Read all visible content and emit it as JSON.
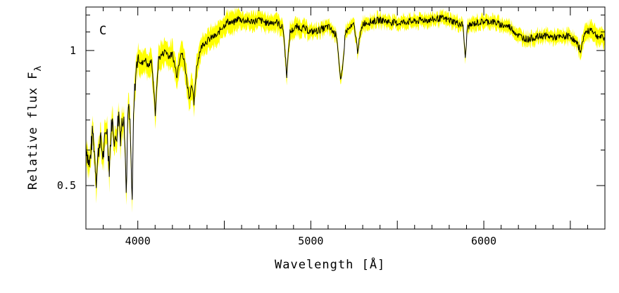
{
  "chart_data": {
    "type": "line",
    "panel_label": "C",
    "xlabel": "Wavelength  [Å]",
    "ylabel": "Relative flux F",
    "ylabel_subscript": "λ",
    "xlim": [
      3700,
      6700
    ],
    "ylim": [
      0.4,
      1.25
    ],
    "y_scale": "log",
    "x_ticks": [
      4000,
      5000,
      6000
    ],
    "y_ticks": [
      0.5,
      1
    ],
    "grid": false,
    "colors": {
      "mean": "#000000",
      "envelope": "#ffff00"
    },
    "series": [
      {
        "x": [
          3700,
          3720,
          3740,
          3760,
          3780,
          3800,
          3820,
          3835,
          3850,
          3870,
          3890,
          3900,
          3920,
          3933,
          3945,
          3955,
          3968,
          3975,
          3985,
          4000,
          4020,
          4040,
          4060,
          4080,
          4101,
          4120,
          4140,
          4160,
          4180,
          4200,
          4226,
          4250,
          4270,
          4290,
          4300,
          4310,
          4325,
          4340,
          4360,
          4380,
          4400,
          4430,
          4460,
          4480,
          4500,
          4520,
          4550,
          4580,
          4600,
          4650,
          4700,
          4750,
          4800,
          4840,
          4861,
          4880,
          4920,
          4960,
          5000,
          5050,
          5100,
          5150,
          5172,
          5183,
          5200,
          5250,
          5270,
          5300,
          5350,
          5400,
          5450,
          5500,
          5550,
          5600,
          5650,
          5700,
          5750,
          5800,
          5850,
          5880,
          5893,
          5905,
          5950,
          6000,
          6050,
          6100,
          6150,
          6200,
          6250,
          6300,
          6350,
          6400,
          6450,
          6500,
          6540,
          6563,
          6580,
          6600,
          6620,
          6650,
          6680,
          6700
        ],
        "y": [
          0.62,
          0.55,
          0.66,
          0.52,
          0.64,
          0.58,
          0.68,
          0.55,
          0.7,
          0.62,
          0.72,
          0.65,
          0.74,
          0.48,
          0.75,
          0.68,
          0.44,
          0.7,
          0.86,
          0.97,
          0.93,
          0.96,
          0.92,
          0.95,
          0.72,
          0.96,
          0.98,
          1.0,
          0.97,
          0.98,
          0.88,
          1.0,
          0.94,
          0.82,
          0.78,
          0.85,
          0.76,
          0.92,
          1.0,
          1.04,
          1.05,
          1.07,
          1.08,
          1.12,
          1.14,
          1.16,
          1.15,
          1.18,
          1.17,
          1.16,
          1.17,
          1.15,
          1.16,
          1.12,
          0.88,
          1.1,
          1.13,
          1.12,
          1.1,
          1.11,
          1.13,
          1.08,
          0.85,
          0.9,
          1.1,
          1.14,
          1.0,
          1.15,
          1.16,
          1.17,
          1.16,
          1.15,
          1.16,
          1.16,
          1.17,
          1.17,
          1.18,
          1.17,
          1.15,
          1.14,
          0.95,
          1.13,
          1.15,
          1.16,
          1.16,
          1.14,
          1.13,
          1.08,
          1.06,
          1.07,
          1.08,
          1.07,
          1.07,
          1.08,
          1.03,
          1.0,
          1.09,
          1.1,
          1.12,
          1.08,
          1.07,
          1.06
        ],
        "envelope": [
          0.06,
          0.06,
          0.06,
          0.06,
          0.06,
          0.06,
          0.06,
          0.06,
          0.06,
          0.06,
          0.06,
          0.06,
          0.06,
          0.06,
          0.06,
          0.06,
          0.06,
          0.06,
          0.06,
          0.06,
          0.06,
          0.06,
          0.06,
          0.06,
          0.06,
          0.06,
          0.06,
          0.06,
          0.06,
          0.06,
          0.06,
          0.06,
          0.06,
          0.06,
          0.06,
          0.06,
          0.06,
          0.06,
          0.05,
          0.05,
          0.05,
          0.05,
          0.05,
          0.05,
          0.05,
          0.05,
          0.05,
          0.05,
          0.04,
          0.04,
          0.04,
          0.04,
          0.04,
          0.04,
          0.04,
          0.04,
          0.04,
          0.04,
          0.03,
          0.03,
          0.03,
          0.03,
          0.03,
          0.03,
          0.03,
          0.03,
          0.03,
          0.03,
          0.03,
          0.03,
          0.03,
          0.03,
          0.03,
          0.03,
          0.03,
          0.03,
          0.03,
          0.03,
          0.03,
          0.03,
          0.03,
          0.03,
          0.03,
          0.03,
          0.03,
          0.03,
          0.03,
          0.03,
          0.03,
          0.03,
          0.03,
          0.03,
          0.03,
          0.03,
          0.03,
          0.04,
          0.04,
          0.04,
          0.04,
          0.04,
          0.04,
          0.04
        ]
      }
    ]
  }
}
